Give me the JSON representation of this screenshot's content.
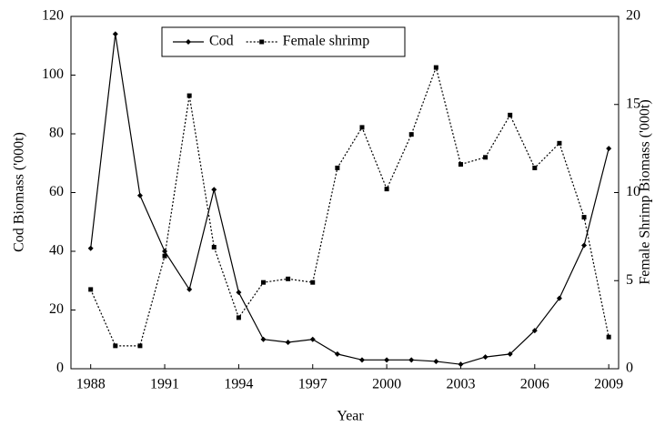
{
  "chart_data": {
    "type": "line",
    "x_label": "Year",
    "y_label": "Cod Biomass  ('000t)",
    "y2_label": "Female Shrimp Biomass ('000t)",
    "x": [
      1988,
      1989,
      1990,
      1991,
      1992,
      1993,
      1994,
      1995,
      1996,
      1997,
      1998,
      1999,
      2000,
      2001,
      2002,
      2003,
      2004,
      2005,
      2006,
      2007,
      2008,
      2009
    ],
    "xlim": [
      1987.2,
      2009.4
    ],
    "xticks": [
      1988,
      1991,
      1994,
      1997,
      2000,
      2003,
      2006,
      2009
    ],
    "ylim": [
      0,
      120
    ],
    "yticks": [
      0,
      20,
      40,
      60,
      80,
      100,
      120
    ],
    "y2lim": [
      0,
      20
    ],
    "y2ticks": [
      0,
      5,
      10,
      15,
      20
    ],
    "legend": "top",
    "series": [
      {
        "name": "Cod",
        "color": "#000000",
        "line_style": "solid",
        "marker": "diamond",
        "values": [
          41,
          114,
          59,
          40,
          27,
          61,
          26,
          10,
          9,
          10,
          5,
          3,
          3,
          3,
          2.5,
          1.5,
          4,
          5,
          13,
          24,
          42,
          75
        ]
      },
      {
        "name": "Female shrimp",
        "color": "#000000",
        "line_style": "dotted",
        "marker": "square",
        "axis": "y2",
        "values": [
          4.5,
          1.3,
          1.3,
          6.4,
          15.5,
          6.9,
          2.9,
          4.9,
          5.1,
          4.9,
          11.4,
          13.7,
          10.2,
          13.3,
          17.1,
          11.6,
          12.0,
          14.4,
          11.4,
          12.8,
          8.6,
          1.8
        ]
      }
    ]
  }
}
